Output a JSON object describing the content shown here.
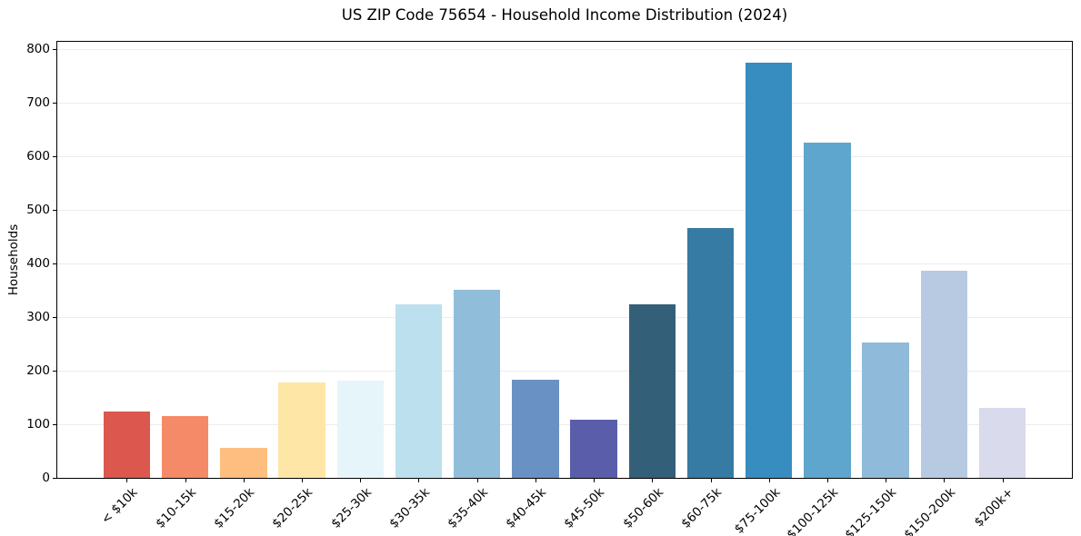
{
  "chart_data": {
    "type": "bar",
    "title": "US ZIP Code 75654 - Household Income Distribution (2024)",
    "xlabel": "",
    "ylabel": "Households",
    "categories": [
      "< $10k",
      "$10-15k",
      "$15-20k",
      "$20-25k",
      "$25-30k",
      "$30-35k",
      "$35-40k",
      "$40-45k",
      "$45-50k",
      "$50-60k",
      "$60-75k",
      "$75-100k",
      "$100-125k",
      "$125-150k",
      "$150-200k",
      "$200k+"
    ],
    "values": [
      124,
      116,
      56,
      178,
      181,
      324,
      351,
      183,
      109,
      324,
      467,
      775,
      626,
      253,
      386,
      130
    ],
    "bar_colors": [
      "#dc574e",
      "#f58a68",
      "#fdbe80",
      "#fee6a6",
      "#e6f5f9",
      "#bce0ed",
      "#90bdda",
      "#6a91c3",
      "#5a5eaa",
      "#345f79",
      "#367ba4",
      "#378cc0",
      "#5ea6cd",
      "#90bad9",
      "#b8cae2",
      "#d9daeb"
    ],
    "ylim": [
      0,
      814
    ],
    "yticks": [
      0,
      100,
      200,
      300,
      400,
      500,
      600,
      700,
      800
    ],
    "grid": "horizontal",
    "grid_color": "#ececec",
    "axis_color": "#000000",
    "legend": "none"
  }
}
